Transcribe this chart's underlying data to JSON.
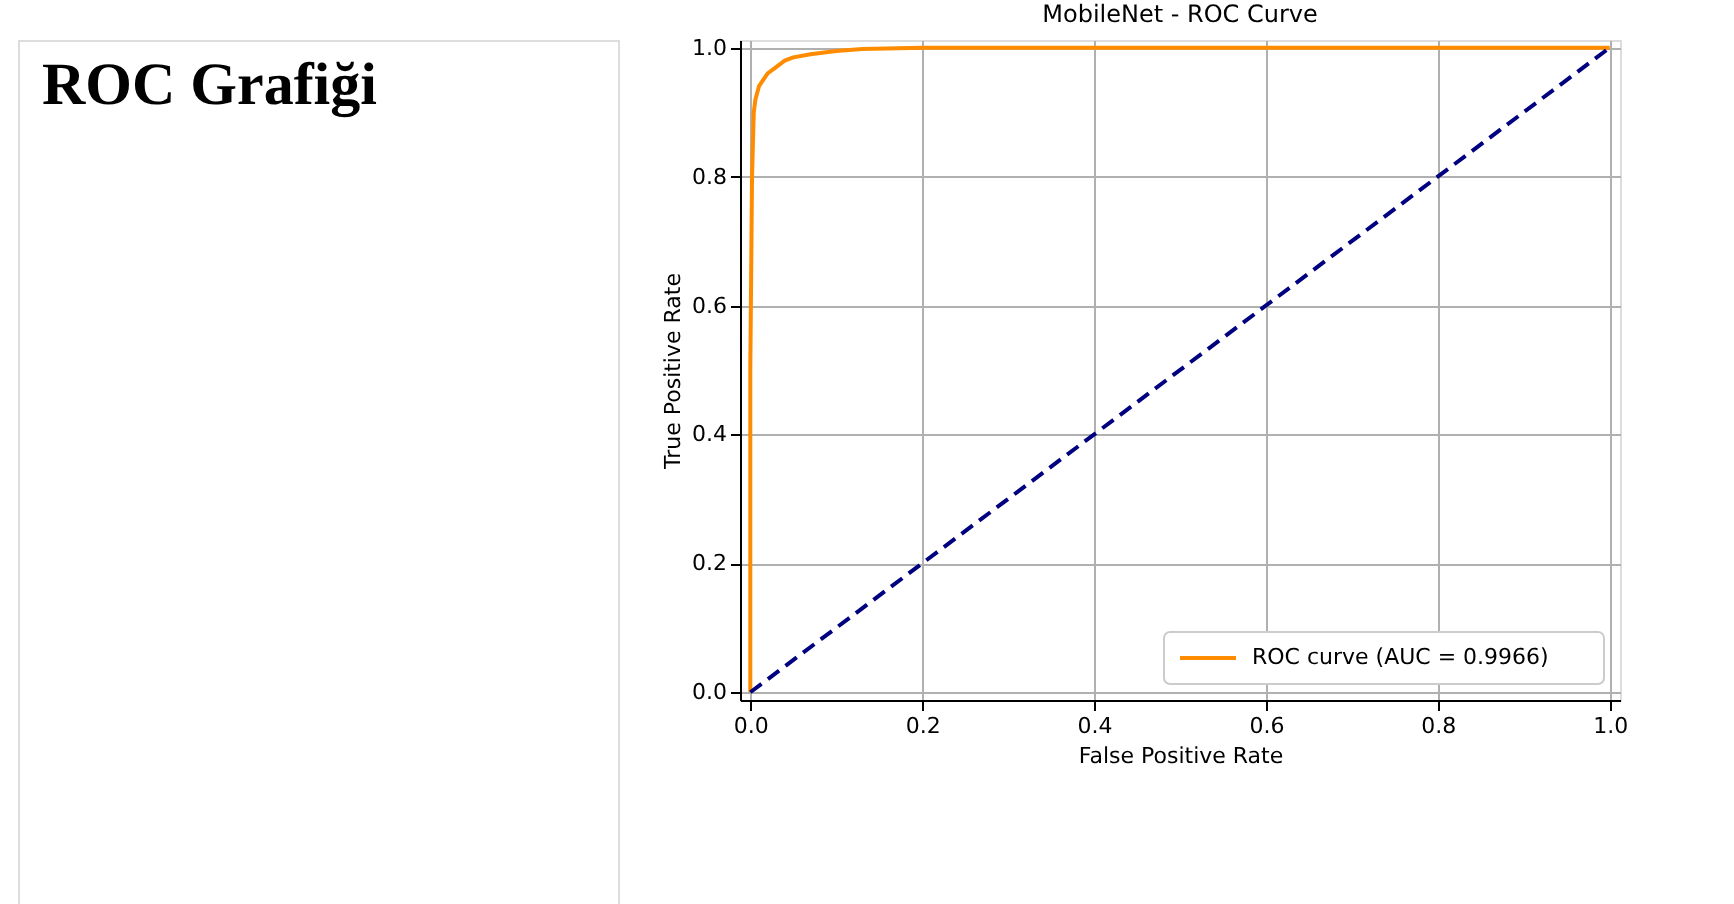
{
  "chart_data": {
    "type": "line",
    "title": "MobileNet - ROC Curve",
    "xlabel": "False Positive Rate",
    "ylabel": "True Positive Rate",
    "annotations": [
      "ROC Grafiği"
    ],
    "series": [
      {
        "name": "ROC curve (AUC = 0.9966)",
        "color": "#ff8c00",
        "x": [
          0,
          0,
          0.002,
          0.004,
          0.006,
          0.01,
          0.015,
          0.02,
          0.03,
          0.04,
          0.05,
          0.07,
          0.1,
          0.13,
          0.2,
          0.4,
          1.0
        ],
        "values": [
          0,
          0.5,
          0.8,
          0.9,
          0.92,
          0.94,
          0.95,
          0.96,
          0.97,
          0.98,
          0.985,
          0.99,
          0.995,
          0.998,
          1.0,
          1.0,
          1.0
        ],
        "line_style": "solid"
      },
      {
        "color": "#000080",
        "x": [
          0,
          1
        ],
        "values": [
          0,
          1
        ],
        "line_style": "dashed"
      }
    ],
    "xlim": [
      -0.012,
      1.012
    ],
    "ylim": [
      -0.012,
      1.012
    ],
    "xticks": [
      {
        "value": 0,
        "label": "0.0"
      },
      0.2,
      0.4,
      0.6,
      0.8,
      {
        "value": 1,
        "label": "1.0"
      }
    ],
    "yticks": [
      {
        "value": 0,
        "label": "0.0"
      },
      0.2,
      0.4,
      0.6,
      0.8,
      {
        "value": 1,
        "label": "1.0"
      }
    ],
    "grid": true,
    "legend": "bottom right",
    "marker": "none"
  }
}
